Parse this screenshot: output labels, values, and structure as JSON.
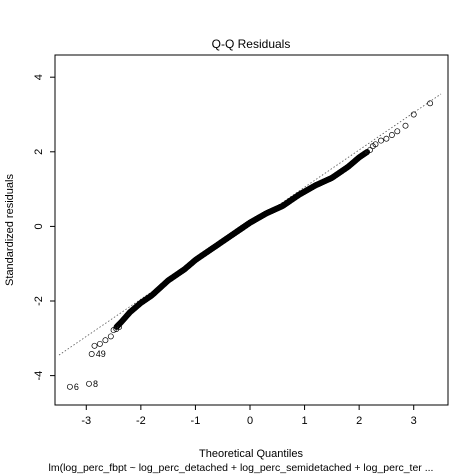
{
  "chart_data": {
    "type": "scatter",
    "title": "Q-Q Residuals",
    "xlabel": "Theoretical Quantiles",
    "ylabel": "Standardized residuals",
    "subtitle": "lm(log_perc_fbpt ~ log_perc_detached + log_perc_semidetached + log_perc_ter ...",
    "xlim": [
      -3.5,
      3.5
    ],
    "ylim": [
      -4.6,
      4.3
    ],
    "xticks": [
      "-3",
      "-2",
      "-1",
      "0",
      "1",
      "2",
      "3"
    ],
    "yticks": [
      "-4",
      "-2",
      "0",
      "2",
      "4"
    ],
    "grid": false,
    "reference_line": {
      "intercept": 0.05,
      "slope": 1.0,
      "style": "dotted"
    },
    "series": [
      {
        "curve": [
          [
            -2.45,
            -2.7
          ],
          [
            -2.35,
            -2.55
          ],
          [
            -2.2,
            -2.3
          ],
          [
            -2.0,
            -2.05
          ],
          [
            -1.8,
            -1.85
          ],
          [
            -1.5,
            -1.45
          ],
          [
            -1.2,
            -1.15
          ],
          [
            -1.0,
            -0.9
          ],
          [
            -0.6,
            -0.5
          ],
          [
            -0.2,
            -0.1
          ],
          [
            0.0,
            0.1
          ],
          [
            0.3,
            0.35
          ],
          [
            0.6,
            0.55
          ],
          [
            0.9,
            0.85
          ],
          [
            1.2,
            1.1
          ],
          [
            1.5,
            1.3
          ],
          [
            1.8,
            1.6
          ],
          [
            2.0,
            1.85
          ],
          [
            2.15,
            2.0
          ]
        ],
        "n_interior_points": 760,
        "tail_points": [
          [
            -3.3,
            -4.3
          ],
          [
            -2.95,
            -4.22
          ],
          [
            -2.9,
            -3.42
          ],
          [
            -2.85,
            -3.2
          ],
          [
            -2.75,
            -3.15
          ],
          [
            -2.65,
            -3.05
          ],
          [
            -2.55,
            -2.95
          ],
          [
            -2.5,
            -2.78
          ],
          [
            -2.45,
            -2.75
          ],
          [
            -2.4,
            -2.7
          ],
          [
            2.2,
            2.05
          ],
          [
            2.25,
            2.15
          ],
          [
            2.3,
            2.2
          ],
          [
            2.4,
            2.3
          ],
          [
            2.5,
            2.35
          ],
          [
            2.6,
            2.45
          ],
          [
            2.7,
            2.55
          ],
          [
            2.85,
            2.7
          ],
          [
            3.0,
            3.0
          ],
          [
            3.3,
            3.3
          ]
        ]
      }
    ],
    "point_labels": [
      {
        "text": "6",
        "x": -3.3,
        "y": -4.3,
        "side": "right"
      },
      {
        "text": "8",
        "x": -2.95,
        "y": -4.22,
        "side": "right"
      },
      {
        "text": "49",
        "x": -2.9,
        "y": -3.42,
        "side": "right"
      }
    ]
  }
}
